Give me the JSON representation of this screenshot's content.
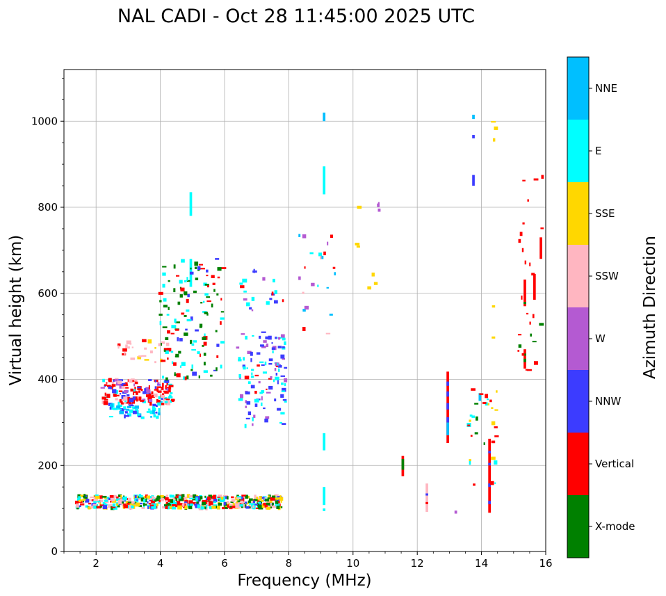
{
  "chart_data": {
    "type": "scatter",
    "title": "NAL CADI - Oct 28 11:45:00 2025 UTC",
    "xlabel": "Frequency (MHz)",
    "ylabel": "Virtual height (km)",
    "xlim": [
      1,
      16
    ],
    "ylim": [
      0,
      1120
    ],
    "xticks": [
      2,
      4,
      6,
      8,
      10,
      12,
      14,
      16
    ],
    "yticks": [
      0,
      200,
      400,
      600,
      800,
      1000
    ],
    "grid": true,
    "colorbar": {
      "label": "Azimuth Direction",
      "categories": [
        "X-mode",
        "Vertical",
        "NNW",
        "W",
        "SSW",
        "SSE",
        "E",
        "NNE"
      ],
      "colors": [
        "#008000",
        "#ff0000",
        "#3c3cff",
        "#b45ad2",
        "#ffb6c1",
        "#ffd700",
        "#00ffff",
        "#00bfff"
      ]
    },
    "echo_cell_size": {
      "freq_mhz": 0.08,
      "height_km": 7
    },
    "echoes": [
      {
        "category": "E",
        "f": 4.95,
        "h_from": 780,
        "h_to": 835
      },
      {
        "category": "E",
        "f": 4.95,
        "h_from": 615,
        "h_to": 680
      },
      {
        "category": "NNE",
        "f": 9.1,
        "h_from": 1000,
        "h_to": 1020
      },
      {
        "category": "E",
        "f": 9.1,
        "h_from": 830,
        "h_to": 895
      },
      {
        "category": "E",
        "f": 9.1,
        "h_from": 235,
        "h_to": 275
      },
      {
        "category": "E",
        "f": 9.1,
        "h_from": 108,
        "h_to": 150
      },
      {
        "category": "E",
        "f": 9.1,
        "h_from": 94,
        "h_to": 100
      },
      {
        "category": "Vertical",
        "f": 11.55,
        "h_from": 175,
        "h_to": 222
      },
      {
        "category": "X-mode",
        "f": 11.55,
        "h_from": 190,
        "h_to": 215
      },
      {
        "category": "Vertical",
        "f": 12.95,
        "h_from": 252,
        "h_to": 418
      },
      {
        "category": "NNW",
        "f": 12.95,
        "h_from": 330,
        "h_to": 345
      },
      {
        "category": "NNW",
        "f": 12.95,
        "h_from": 360,
        "h_to": 372
      },
      {
        "category": "NNW",
        "f": 12.95,
        "h_from": 385,
        "h_to": 395
      },
      {
        "category": "NNE",
        "f": 12.95,
        "h_from": 270,
        "h_to": 300
      },
      {
        "category": "NNW",
        "f": 12.95,
        "h_from": 300,
        "h_to": 312
      },
      {
        "category": "Vertical",
        "f": 14.25,
        "h_from": 90,
        "h_to": 262
      },
      {
        "category": "NNW",
        "f": 14.25,
        "h_from": 110,
        "h_to": 118
      },
      {
        "category": "NNW",
        "f": 14.25,
        "h_from": 150,
        "h_to": 158
      },
      {
        "category": "NNW",
        "f": 14.25,
        "h_from": 200,
        "h_to": 206
      },
      {
        "category": "NNW",
        "f": 14.25,
        "h_from": 228,
        "h_to": 234
      },
      {
        "category": "Vertical",
        "f": 15.35,
        "h_from": 425,
        "h_to": 470
      },
      {
        "category": "X-mode",
        "f": 15.35,
        "h_from": 440,
        "h_to": 448
      },
      {
        "category": "X-mode",
        "f": 15.35,
        "h_from": 455,
        "h_to": 460
      },
      {
        "category": "Vertical",
        "f": 15.35,
        "h_from": 570,
        "h_to": 632
      },
      {
        "category": "X-mode",
        "f": 15.35,
        "h_from": 575,
        "h_to": 580
      },
      {
        "category": "Vertical",
        "f": 15.65,
        "h_from": 585,
        "h_to": 645
      },
      {
        "category": "Vertical",
        "f": 15.85,
        "h_from": 680,
        "h_to": 730
      },
      {
        "category": "NNW",
        "f": 13.75,
        "h_from": 850,
        "h_to": 875
      },
      {
        "category": "NNE",
        "f": 13.75,
        "h_from": 1005,
        "h_to": 1015
      },
      {
        "category": "NNW",
        "f": 13.75,
        "h_from": 960,
        "h_to": 968
      },
      {
        "category": "SSW",
        "f": 12.3,
        "h_from": 92,
        "h_to": 158
      },
      {
        "category": "Vertical",
        "f": 12.3,
        "h_from": 110,
        "h_to": 115
      },
      {
        "category": "NNW",
        "f": 12.3,
        "h_from": 130,
        "h_to": 135
      },
      {
        "category": "W",
        "f": 13.2,
        "h_from": 88,
        "h_to": 95
      },
      {
        "category": "NNE",
        "f": 13.95,
        "h_from": 350,
        "h_to": 368
      }
    ]
  }
}
